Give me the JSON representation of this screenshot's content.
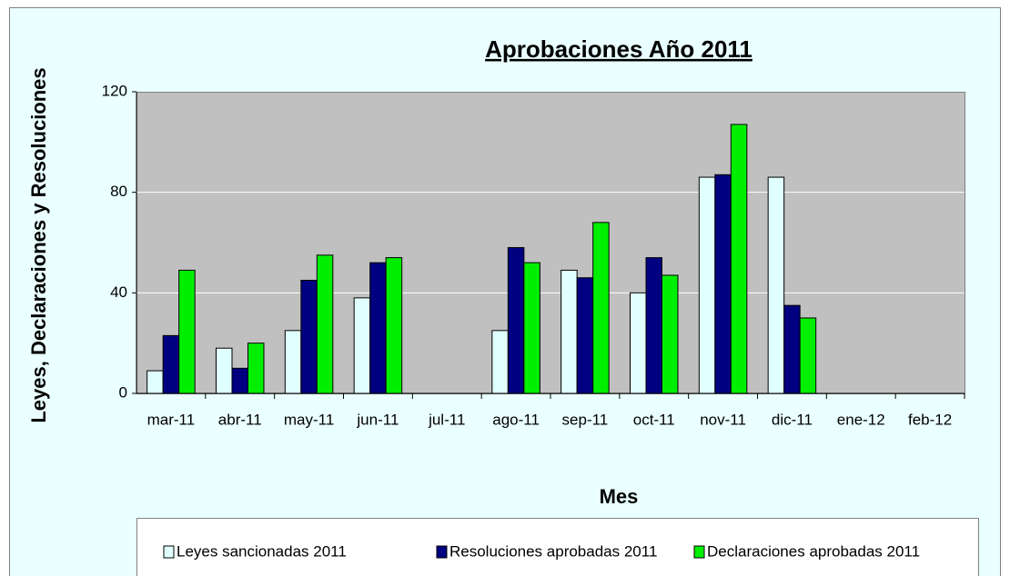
{
  "chart_data": {
    "type": "bar",
    "title": "Aprobaciones Año 2011",
    "x_label": "Mes",
    "y_label": "Leyes, Declaraciones y Resoluciones",
    "categories": [
      "mar-11",
      "abr-11",
      "may-11",
      "jun-11",
      "jul-11",
      "ago-11",
      "sep-11",
      "oct-11",
      "nov-11",
      "dic-11",
      "ene-12",
      "feb-12"
    ],
    "series": [
      {
        "name": "Leyes sancionadas 2011",
        "color": "#e0ffff",
        "values": [
          9,
          18,
          25,
          38,
          null,
          25,
          49,
          40,
          86,
          86,
          null,
          null
        ]
      },
      {
        "name": "Resoluciones aprobadas 2011",
        "color": "#000080",
        "values": [
          23,
          10,
          45,
          52,
          null,
          58,
          46,
          54,
          87,
          35,
          null,
          null
        ]
      },
      {
        "name": "Declaraciones aprobadas 2011",
        "color": "#00ee00",
        "values": [
          49,
          20,
          55,
          54,
          null,
          52,
          68,
          47,
          107,
          30,
          null,
          null
        ]
      }
    ],
    "ylim": [
      0,
      120
    ],
    "yticks": [
      0,
      40,
      80,
      120
    ],
    "grid": true,
    "legend": "bottom"
  }
}
